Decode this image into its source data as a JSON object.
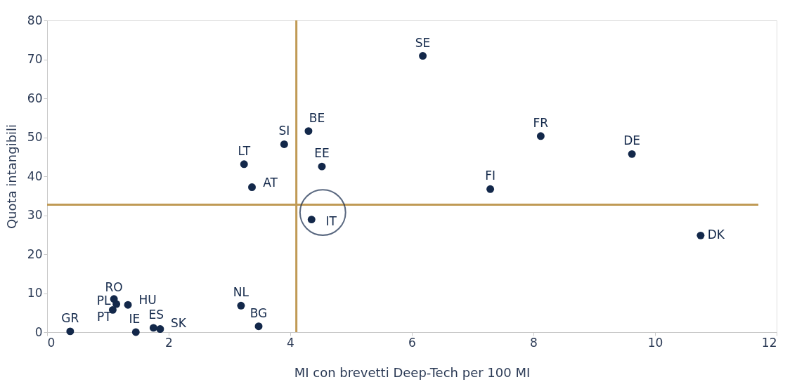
{
  "chart_data": {
    "type": "scatter",
    "xlabel": "MI con brevetti Deep-Tech per 100 MI",
    "ylabel": "Quota intangibili",
    "series": [
      {
        "name": "SE",
        "color": "#13284a",
        "x": [
          6.18
        ],
        "values": [
          70.9
        ]
      },
      {
        "name": "FR",
        "color": "#13284a",
        "x": [
          8.12
        ],
        "values": [
          50.3
        ]
      },
      {
        "name": "DE",
        "color": "#13284a",
        "x": [
          9.62
        ],
        "values": [
          45.7
        ]
      },
      {
        "name": "FI",
        "color": "#13284a",
        "x": [
          7.29
        ],
        "values": [
          36.7
        ]
      },
      {
        "name": "DK",
        "color": "#13284a",
        "x": [
          10.75
        ],
        "values": [
          24.8
        ]
      },
      {
        "name": "BE",
        "color": "#13284a",
        "x": [
          4.3
        ],
        "values": [
          51.6
        ]
      },
      {
        "name": "SI",
        "color": "#13284a",
        "x": [
          3.9
        ],
        "values": [
          48.2
        ]
      },
      {
        "name": "LT",
        "color": "#13284a",
        "x": [
          3.24
        ],
        "values": [
          43.1
        ]
      },
      {
        "name": "AT",
        "color": "#13284a",
        "x": [
          3.37
        ],
        "values": [
          37.2
        ]
      },
      {
        "name": "EE",
        "color": "#13284a",
        "x": [
          4.52
        ],
        "values": [
          42.5
        ]
      },
      {
        "name": "IT",
        "color": "#13284a",
        "x": [
          4.35
        ],
        "values": [
          28.9
        ]
      },
      {
        "name": "NL",
        "color": "#13284a",
        "x": [
          3.19
        ],
        "values": [
          6.8
        ]
      },
      {
        "name": "BG",
        "color": "#13284a",
        "x": [
          3.48
        ],
        "values": [
          1.5
        ]
      },
      {
        "name": "GR",
        "color": "#13284a",
        "x": [
          0.38
        ],
        "values": [
          0.2
        ]
      },
      {
        "name": "RO",
        "color": "#13284a",
        "x": [
          1.1
        ],
        "values": [
          8.5
        ]
      },
      {
        "name": "PL",
        "color": "#13284a",
        "x": [
          1.14
        ],
        "values": [
          7.2
        ]
      },
      {
        "name": "PT",
        "color": "#13284a",
        "x": [
          1.08
        ],
        "values": [
          5.7
        ]
      },
      {
        "name": "HU",
        "color": "#13284a",
        "x": [
          1.33
        ],
        "values": [
          7.0
        ]
      },
      {
        "name": "IE",
        "color": "#13284a",
        "x": [
          1.46
        ],
        "values": [
          0
        ]
      },
      {
        "name": "ES",
        "color": "#13284a",
        "x": [
          1.75
        ],
        "values": [
          1.1
        ]
      },
      {
        "name": "SK",
        "color": "#13284a",
        "x": [
          1.86
        ],
        "values": [
          0.8
        ]
      }
    ],
    "marker": "circle",
    "xlim": [
      0,
      12
    ],
    "xticks": [
      0,
      2,
      4,
      6,
      8,
      10,
      12
    ],
    "ylim": [
      0,
      80
    ],
    "yticks": [
      0,
      10,
      20,
      30,
      40,
      50,
      60,
      70,
      80
    ],
    "grid": false,
    "legend": false,
    "ref_lines": [
      {
        "axis": "x",
        "value": 4.1,
        "color": "#c09a55"
      },
      {
        "axis": "y",
        "value": 32.7,
        "color": "#c09a55"
      }
    ]
  }
}
